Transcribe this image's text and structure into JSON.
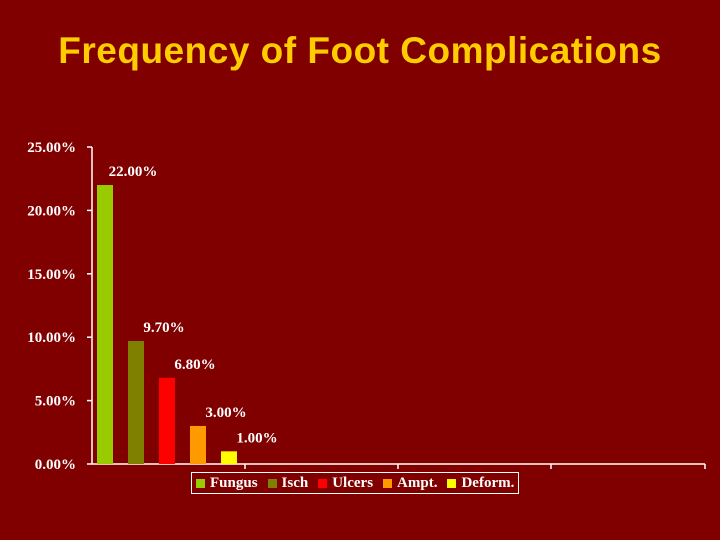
{
  "slide": {
    "title": "Frequency of Foot Complications"
  },
  "chart_data": {
    "type": "bar",
    "title": "Frequency of Foot Complications",
    "xlabel": "",
    "ylabel": "",
    "ylim": [
      0,
      25
    ],
    "y_ticks": [
      "0.00%",
      "5.00%",
      "10.00%",
      "15.00%",
      "20.00%",
      "25.00%"
    ],
    "y_tick_values": [
      0,
      5,
      10,
      15,
      20,
      25
    ],
    "grid": false,
    "legend_position": "bottom",
    "series": [
      {
        "name": "Fungus",
        "value": 22.0,
        "label": "22.00%",
        "color": "#99cc00"
      },
      {
        "name": "Isch",
        "value": 9.7,
        "label": "9.70%",
        "color": "#808000"
      },
      {
        "name": "Ulcers",
        "value": 6.8,
        "label": "6.80%",
        "color": "#ff0000"
      },
      {
        "name": "Ampt.",
        "value": 3.0,
        "label": "3.00%",
        "color": "#ff9900"
      },
      {
        "name": "Deform.",
        "value": 1.0,
        "label": "1.00%",
        "color": "#ffff00"
      }
    ]
  }
}
